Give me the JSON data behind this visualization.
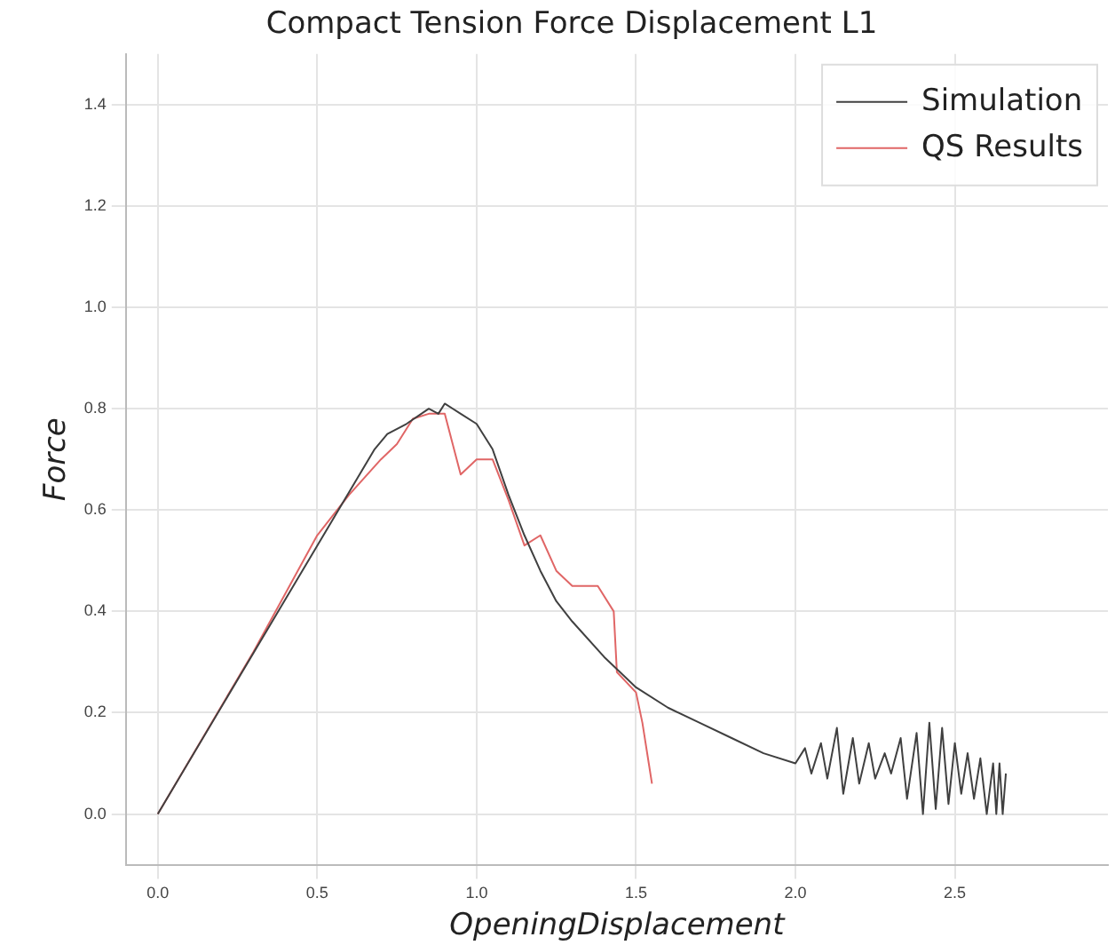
{
  "chart_data": {
    "type": "line",
    "title": "Compact Tension Force Displacement L1",
    "xlabel": "OpeningDisplacement",
    "ylabel": "Force",
    "xlim": [
      -0.1,
      2.98
    ],
    "xticks": [
      {
        "value": 0,
        "label": "0.0"
      },
      {
        "value": 0.5,
        "label": "0.5"
      },
      {
        "value": 1,
        "label": "1.0"
      },
      {
        "value": 1.5,
        "label": "1.5"
      },
      {
        "value": 2,
        "label": "2.0"
      },
      {
        "value": 2.5,
        "label": "2.5"
      }
    ],
    "ylim": [
      -0.1,
      1.5
    ],
    "yticks": [
      {
        "value": 0,
        "label": "0.0"
      },
      {
        "value": 0.2,
        "label": "0.2"
      },
      {
        "value": 0.4,
        "label": "0.4"
      },
      {
        "value": 0.6,
        "label": "0.6"
      },
      {
        "value": 0.8,
        "label": "0.8"
      },
      {
        "value": 1,
        "label": "1.0"
      },
      {
        "value": 1.2,
        "label": "1.2"
      },
      {
        "value": 1.4,
        "label": "1.4"
      }
    ],
    "grid": true,
    "legend": "top right",
    "marker": "none",
    "line_style": "solid",
    "series": [
      {
        "name": "Simulation",
        "color": "#404040",
        "x": [
          0,
          0.68,
          0.72,
          0.78,
          0.85,
          0.88,
          0.9,
          0.95,
          1.0,
          1.05,
          1.1,
          1.15,
          1.2,
          1.25,
          1.3,
          1.4,
          1.5,
          1.6,
          1.7,
          1.8,
          1.9,
          2.0,
          2.03,
          2.05,
          2.08,
          2.1,
          2.13,
          2.15,
          2.18,
          2.2,
          2.23,
          2.25,
          2.28,
          2.3,
          2.33,
          2.35,
          2.38,
          2.4,
          2.42,
          2.44,
          2.46,
          2.48,
          2.5,
          2.52,
          2.54,
          2.56,
          2.58,
          2.6,
          2.62,
          2.63,
          2.64,
          2.65,
          2.66
        ],
        "values": [
          0,
          0.72,
          0.75,
          0.77,
          0.8,
          0.79,
          0.81,
          0.79,
          0.77,
          0.72,
          0.63,
          0.55,
          0.48,
          0.42,
          0.38,
          0.31,
          0.25,
          0.21,
          0.18,
          0.15,
          0.12,
          0.1,
          0.13,
          0.08,
          0.14,
          0.07,
          0.17,
          0.04,
          0.15,
          0.06,
          0.14,
          0.07,
          0.12,
          0.08,
          0.15,
          0.03,
          0.16,
          0,
          0.18,
          0.01,
          0.17,
          0.02,
          0.14,
          0.04,
          0.12,
          0.03,
          0.11,
          0,
          0.1,
          0,
          0.1,
          0,
          0.08
        ]
      },
      {
        "name": "QS Results",
        "color": "#e06666",
        "x": [
          0,
          0.3,
          0.5,
          0.6,
          0.7,
          0.75,
          0.8,
          0.85,
          0.9,
          0.95,
          1.0,
          1.05,
          1.1,
          1.15,
          1.2,
          1.25,
          1.3,
          1.38,
          1.43,
          1.44,
          1.5,
          1.52,
          1.54,
          1.55
        ],
        "values": [
          0,
          0.32,
          0.55,
          0.63,
          0.7,
          0.73,
          0.78,
          0.79,
          0.79,
          0.67,
          0.7,
          0.7,
          0.62,
          0.53,
          0.55,
          0.48,
          0.45,
          0.45,
          0.4,
          0.28,
          0.24,
          0.18,
          0.1,
          0.06
        ]
      }
    ]
  }
}
